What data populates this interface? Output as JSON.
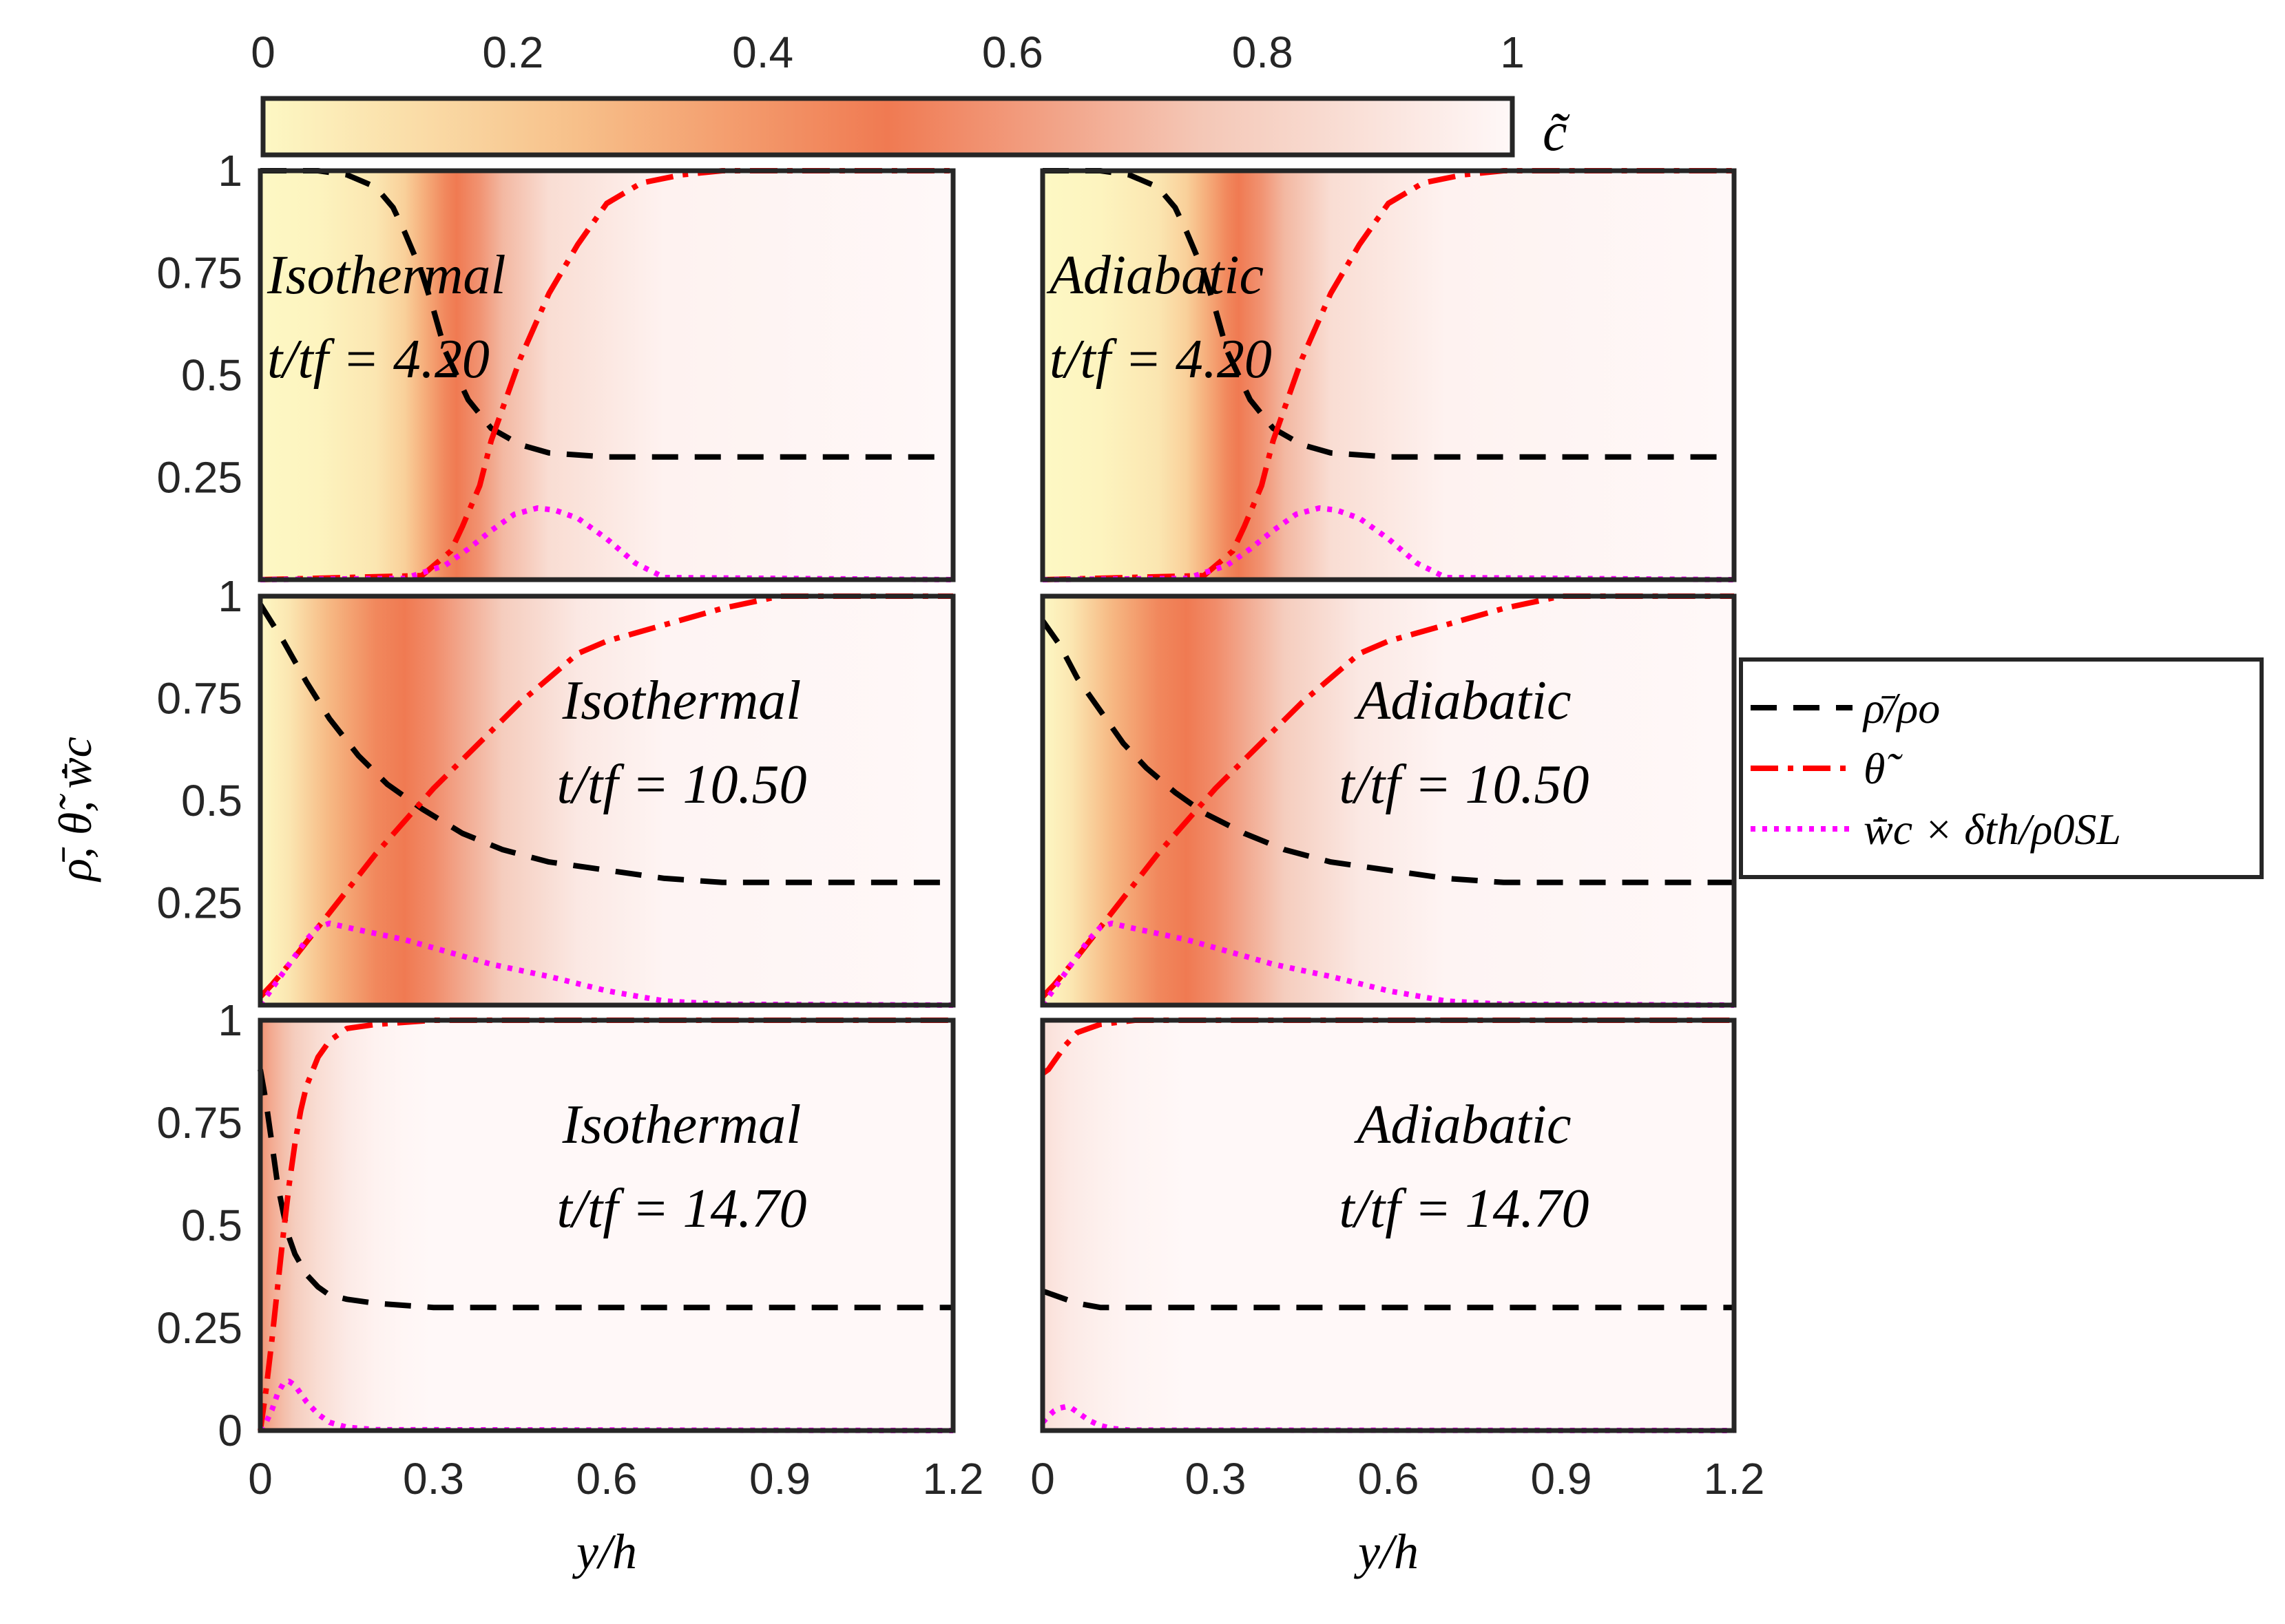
{
  "chart_data": {
    "type": "line",
    "colorbar": {
      "label": "c̃",
      "ticks": [
        "0",
        "0.2",
        "0.4",
        "0.6",
        "0.8",
        "1"
      ],
      "range": [
        0,
        1
      ],
      "colors": [
        "#fdf8c4",
        "#f7c08a",
        "#f07a52",
        "#f4c7b6",
        "#fff8f8"
      ]
    },
    "x_axis": {
      "label": "y/h",
      "range": [
        0,
        1.2
      ],
      "ticks": [
        "0",
        "0.3",
        "0.6",
        "0.9",
        "1.2"
      ]
    },
    "y_axis": {
      "label": "ρ̄, θ̃, w̄̇c",
      "range": [
        0,
        1
      ],
      "ticks_upper": [
        "0.25",
        "0.5",
        "0.75",
        "1"
      ],
      "ticks_bottom": [
        "0",
        "0.25",
        "0.5",
        "0.75",
        "1"
      ]
    },
    "legend": {
      "placement": "right-middle",
      "entries": [
        {
          "key": "rho",
          "label": "ρ̄/ρo",
          "color": "#000000",
          "style": "dashed"
        },
        {
          "key": "theta",
          "label": "θ̃",
          "color": "#ff0000",
          "style": "dashdot"
        },
        {
          "key": "w",
          "label": "w̄̇c × δth/ρ0SL",
          "color": "#ff00ff",
          "style": "dotted"
        }
      ]
    },
    "panels": [
      {
        "id": "iso-1",
        "condition": "Isothermal",
        "time_label": "t/tf = 4.20",
        "label_placement": "upper-left",
        "c_profile": {
          "x": [
            0,
            0.1,
            0.2,
            0.25,
            0.28,
            0.32,
            0.34,
            0.38,
            0.42,
            0.5,
            0.7,
            1.2
          ],
          "c": [
            0,
            0.02,
            0.08,
            0.18,
            0.3,
            0.45,
            0.5,
            0.58,
            0.7,
            0.86,
            0.97,
            1
          ]
        },
        "series": {
          "rho": {
            "x": [
              0,
              0.1,
              0.15,
              0.2,
              0.23,
              0.25,
              0.28,
              0.3,
              0.32,
              0.36,
              0.4,
              0.45,
              0.5,
              0.6,
              1.2
            ],
            "y": [
              1,
              1,
              0.99,
              0.96,
              0.91,
              0.85,
              0.75,
              0.66,
              0.56,
              0.44,
              0.37,
              0.33,
              0.31,
              0.3,
              0.3
            ]
          },
          "theta": {
            "x": [
              0,
              0.28,
              0.33,
              0.35,
              0.38,
              0.4,
              0.45,
              0.5,
              0.55,
              0.6,
              0.66,
              0.73,
              0.8,
              1.2
            ],
            "y": [
              0,
              0.01,
              0.07,
              0.13,
              0.23,
              0.34,
              0.54,
              0.7,
              0.82,
              0.92,
              0.97,
              0.99,
              1,
              1
            ]
          },
          "w": {
            "x": [
              0,
              0.25,
              0.32,
              0.36,
              0.4,
              0.44,
              0.48,
              0.51,
              0.55,
              0.6,
              0.65,
              0.7,
              1.2
            ],
            "y": [
              0,
              0.003,
              0.035,
              0.075,
              0.12,
              0.16,
              0.175,
              0.17,
              0.15,
              0.1,
              0.04,
              0.005,
              0
            ]
          }
        }
      },
      {
        "id": "adi-1",
        "condition": "Adiabatic",
        "time_label": "t/tf = 4.20",
        "label_placement": "upper-left",
        "c_profile": {
          "x": [
            0,
            0.1,
            0.2,
            0.25,
            0.28,
            0.32,
            0.34,
            0.38,
            0.42,
            0.5,
            0.7,
            1.2
          ],
          "c": [
            0,
            0.02,
            0.08,
            0.18,
            0.3,
            0.45,
            0.5,
            0.58,
            0.7,
            0.86,
            0.97,
            1
          ]
        },
        "series": {
          "rho": {
            "x": [
              0,
              0.1,
              0.15,
              0.2,
              0.23,
              0.25,
              0.28,
              0.3,
              0.32,
              0.36,
              0.4,
              0.45,
              0.5,
              0.6,
              1.2
            ],
            "y": [
              1,
              1,
              0.99,
              0.96,
              0.91,
              0.85,
              0.75,
              0.66,
              0.56,
              0.44,
              0.37,
              0.33,
              0.31,
              0.3,
              0.3
            ]
          },
          "theta": {
            "x": [
              0,
              0.28,
              0.33,
              0.35,
              0.38,
              0.4,
              0.45,
              0.5,
              0.55,
              0.6,
              0.66,
              0.73,
              0.8,
              1.2
            ],
            "y": [
              0,
              0.01,
              0.07,
              0.13,
              0.23,
              0.34,
              0.54,
              0.7,
              0.82,
              0.92,
              0.97,
              0.99,
              1,
              1
            ]
          },
          "w": {
            "x": [
              0,
              0.25,
              0.32,
              0.36,
              0.4,
              0.44,
              0.48,
              0.51,
              0.55,
              0.6,
              0.65,
              0.7,
              1.2
            ],
            "y": [
              0,
              0.003,
              0.035,
              0.075,
              0.12,
              0.16,
              0.175,
              0.17,
              0.15,
              0.1,
              0.04,
              0.005,
              0
            ]
          }
        }
      },
      {
        "id": "iso-2",
        "condition": "Isothermal",
        "time_label": "t/tf = 10.50",
        "label_placement": "upper-right",
        "c_profile": {
          "x": [
            0,
            0.05,
            0.12,
            0.2,
            0.25,
            0.3,
            0.35,
            0.42,
            0.55,
            0.7,
            1.2
          ],
          "c": [
            0,
            0.08,
            0.28,
            0.45,
            0.5,
            0.56,
            0.65,
            0.78,
            0.92,
            0.98,
            1
          ]
        },
        "series": {
          "rho": {
            "x": [
              0,
              0.04,
              0.08,
              0.12,
              0.17,
              0.22,
              0.28,
              0.35,
              0.42,
              0.5,
              0.6,
              0.7,
              0.8,
              1.2
            ],
            "y": [
              0.98,
              0.89,
              0.79,
              0.7,
              0.61,
              0.54,
              0.48,
              0.42,
              0.38,
              0.35,
              0.33,
              0.31,
              0.3,
              0.3
            ]
          },
          "theta": {
            "x": [
              0,
              0.02,
              0.05,
              0.1,
              0.15,
              0.2,
              0.25,
              0.3,
              0.35,
              0.4,
              0.45,
              0.5,
              0.55,
              0.6,
              0.7,
              0.8,
              0.9,
              1.2
            ],
            "y": [
              0.02,
              0.05,
              0.1,
              0.19,
              0.28,
              0.37,
              0.45,
              0.53,
              0.6,
              0.67,
              0.74,
              0.8,
              0.86,
              0.89,
              0.93,
              0.97,
              1,
              1
            ]
          },
          "w": {
            "x": [
              0,
              0.02,
              0.05,
              0.08,
              0.1,
              0.12,
              0.15,
              0.2,
              0.25,
              0.3,
              0.35,
              0.4,
              0.5,
              0.6,
              0.7,
              0.8,
              1.2
            ],
            "y": [
              0,
              0.04,
              0.1,
              0.16,
              0.19,
              0.2,
              0.19,
              0.175,
              0.16,
              0.14,
              0.12,
              0.1,
              0.07,
              0.035,
              0.01,
              0.002,
              0
            ]
          }
        }
      },
      {
        "id": "adi-2",
        "condition": "Adiabatic",
        "time_label": "t/tf = 10.50",
        "label_placement": "upper-right",
        "c_profile": {
          "x": [
            0,
            0.05,
            0.12,
            0.2,
            0.25,
            0.3,
            0.35,
            0.42,
            0.55,
            0.7,
            1.2
          ],
          "c": [
            0,
            0.08,
            0.28,
            0.45,
            0.5,
            0.56,
            0.65,
            0.78,
            0.92,
            0.98,
            1
          ]
        },
        "series": {
          "rho": {
            "x": [
              0,
              0.03,
              0.06,
              0.1,
              0.14,
              0.18,
              0.23,
              0.28,
              0.35,
              0.42,
              0.5,
              0.6,
              0.7,
              0.8,
              1.2
            ],
            "y": [
              0.94,
              0.88,
              0.8,
              0.72,
              0.64,
              0.58,
              0.52,
              0.47,
              0.42,
              0.38,
              0.35,
              0.33,
              0.31,
              0.3,
              0.3
            ]
          },
          "theta": {
            "x": [
              0,
              0.02,
              0.05,
              0.1,
              0.15,
              0.2,
              0.25,
              0.3,
              0.35,
              0.4,
              0.45,
              0.5,
              0.55,
              0.6,
              0.7,
              0.8,
              0.9,
              1.2
            ],
            "y": [
              0.02,
              0.05,
              0.1,
              0.19,
              0.28,
              0.37,
              0.45,
              0.53,
              0.6,
              0.67,
              0.74,
              0.8,
              0.86,
              0.89,
              0.93,
              0.97,
              1,
              1
            ]
          },
          "w": {
            "x": [
              0,
              0.02,
              0.05,
              0.08,
              0.1,
              0.12,
              0.15,
              0.2,
              0.25,
              0.3,
              0.35,
              0.4,
              0.5,
              0.6,
              0.7,
              0.8,
              1.2
            ],
            "y": [
              0,
              0.04,
              0.1,
              0.16,
              0.19,
              0.2,
              0.19,
              0.175,
              0.16,
              0.14,
              0.12,
              0.1,
              0.07,
              0.035,
              0.01,
              0.002,
              0
            ]
          }
        }
      },
      {
        "id": "iso-3",
        "condition": "Isothermal",
        "time_label": "t/tf = 14.70",
        "label_placement": "upper-right",
        "c_profile": {
          "x": [
            0,
            0.02,
            0.04,
            0.06,
            0.1,
            0.15,
            0.2,
            0.25,
            0.3,
            1.2
          ],
          "c": [
            0.58,
            0.66,
            0.72,
            0.78,
            0.86,
            0.93,
            0.97,
            0.99,
            1,
            1
          ]
        },
        "series": {
          "rho": {
            "x": [
              0,
              0.01,
              0.02,
              0.03,
              0.04,
              0.05,
              0.06,
              0.08,
              0.1,
              0.12,
              0.15,
              0.2,
              0.3,
              0.5,
              1.2
            ],
            "y": [
              0.88,
              0.8,
              0.7,
              0.6,
              0.53,
              0.47,
              0.43,
              0.38,
              0.35,
              0.33,
              0.32,
              0.31,
              0.3,
              0.3,
              0.3
            ]
          },
          "theta": {
            "x": [
              0,
              0.01,
              0.02,
              0.03,
              0.04,
              0.05,
              0.06,
              0.07,
              0.08,
              0.1,
              0.12,
              0.15,
              0.2,
              0.3,
              0.5,
              1.2
            ],
            "y": [
              0,
              0.1,
              0.22,
              0.35,
              0.48,
              0.6,
              0.7,
              0.78,
              0.84,
              0.91,
              0.95,
              0.98,
              0.99,
              1,
              1,
              1
            ]
          },
          "w": {
            "x": [
              0,
              0.01,
              0.02,
              0.03,
              0.04,
              0.05,
              0.06,
              0.07,
              0.08,
              0.1,
              0.12,
              0.15,
              0.2,
              1.2
            ],
            "y": [
              0,
              0.02,
              0.05,
              0.09,
              0.115,
              0.12,
              0.11,
              0.09,
              0.07,
              0.04,
              0.02,
              0.008,
              0.002,
              0
            ]
          }
        }
      },
      {
        "id": "adi-3",
        "condition": "Adiabatic",
        "time_label": "t/tf = 14.70",
        "label_placement": "upper-right",
        "c_profile": {
          "x": [
            0,
            0.02,
            0.05,
            0.1,
            0.15,
            0.2,
            0.25,
            1.2
          ],
          "c": [
            0.87,
            0.9,
            0.93,
            0.96,
            0.98,
            0.99,
            1,
            1
          ]
        },
        "series": {
          "rho": {
            "x": [
              0,
              0.02,
              0.04,
              0.06,
              0.08,
              0.1,
              0.15,
              0.2,
              1.2
            ],
            "y": [
              0.34,
              0.33,
              0.32,
              0.31,
              0.305,
              0.3,
              0.3,
              0.3,
              0.3
            ]
          },
          "theta": {
            "x": [
              0,
              0.01,
              0.02,
              0.03,
              0.04,
              0.06,
              0.08,
              0.1,
              0.13,
              0.16,
              0.2,
              0.3,
              1.2
            ],
            "y": [
              0.87,
              0.88,
              0.9,
              0.92,
              0.94,
              0.97,
              0.98,
              0.99,
              0.995,
              1,
              1,
              1,
              1
            ]
          },
          "w": {
            "x": [
              0,
              0.01,
              0.02,
              0.03,
              0.04,
              0.05,
              0.06,
              0.07,
              0.08,
              0.1,
              0.12,
              0.15,
              1.2
            ],
            "y": [
              0.02,
              0.035,
              0.048,
              0.055,
              0.058,
              0.055,
              0.045,
              0.035,
              0.025,
              0.012,
              0.005,
              0.001,
              0
            ]
          }
        }
      }
    ]
  }
}
